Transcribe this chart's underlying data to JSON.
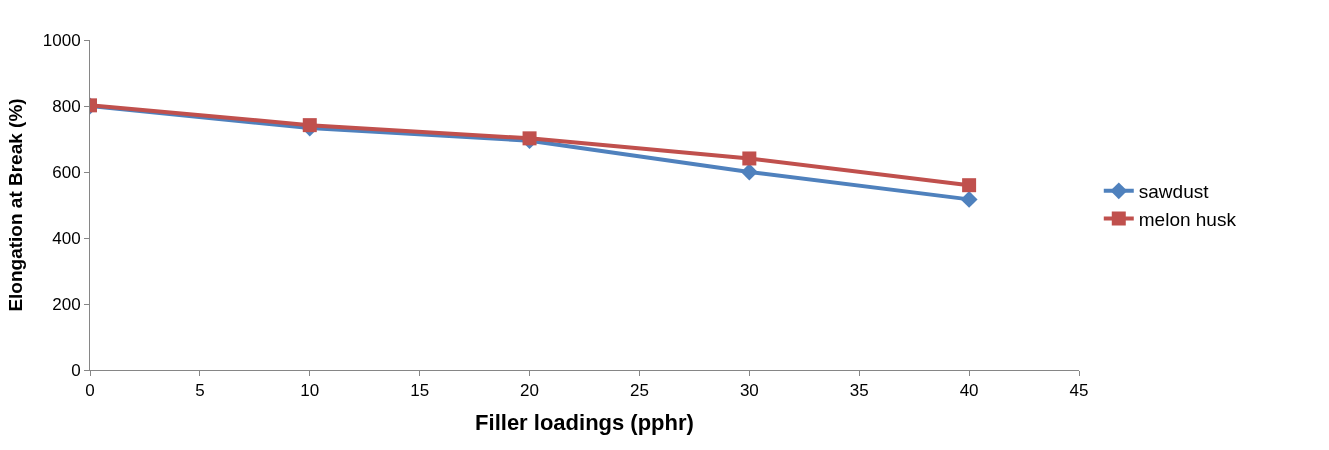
{
  "chart_data": {
    "type": "line",
    "xlabel": "Filler loadings (pphr)",
    "ylabel": "Elongation at Break (%)",
    "x": [
      0,
      10,
      20,
      30,
      40
    ],
    "series": [
      {
        "name": "sawdust",
        "color": "#4f81bd",
        "marker": "diamond",
        "values": [
          800,
          733,
          695,
          600,
          517
        ]
      },
      {
        "name": "melon husk",
        "color": "#c0504d",
        "marker": "square",
        "values": [
          802,
          742,
          702,
          641,
          560
        ]
      }
    ],
    "xlim": [
      0,
      45
    ],
    "xticks": [
      0,
      5,
      10,
      15,
      20,
      25,
      30,
      35,
      40,
      45
    ],
    "ylim": [
      0,
      1000
    ],
    "yticks": [
      0,
      200,
      400,
      600,
      800,
      1000
    ],
    "legend": "right"
  }
}
